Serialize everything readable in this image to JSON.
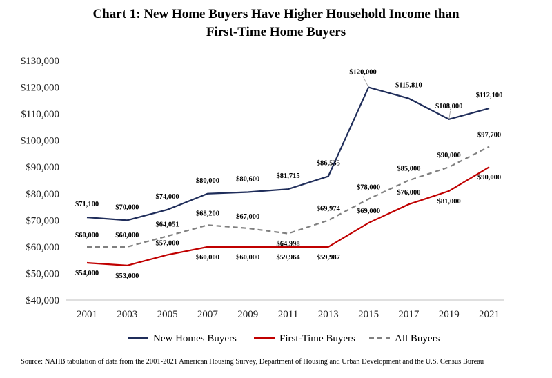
{
  "chart_data": {
    "type": "line",
    "title_line1": "Chart 1: New Home Buyers Have Higher Household Income than",
    "title_line2": "First-Time Home Buyers",
    "categories": [
      "2001",
      "2003",
      "2005",
      "2007",
      "2009",
      "2011",
      "2013",
      "2015",
      "2017",
      "2019",
      "2021"
    ],
    "ylim": [
      40000,
      130000
    ],
    "yticks": [
      "$40,000",
      "$50,000",
      "$60,000",
      "$70,000",
      "$80,000",
      "$90,000",
      "$100,000",
      "$110,000",
      "$120,000",
      "$130,000"
    ],
    "series": [
      {
        "name": "New Homes Buyers",
        "color": "#1f2d5a",
        "dash": "solid",
        "values": [
          71100,
          70000,
          74000,
          80000,
          80600,
          81715,
          86535,
          120000,
          115810,
          108000,
          112100
        ],
        "labels": [
          "$71,100",
          "$70,000",
          "$74,000",
          "$80,000",
          "$80,600",
          "$81,715",
          "$86,535",
          "$120,000",
          "$115,810",
          "$108,000",
          "$112,100"
        ]
      },
      {
        "name": "First-Time Buyers",
        "color": "#c00000",
        "dash": "solid",
        "values": [
          54000,
          53000,
          57000,
          60000,
          60000,
          59964,
          59987,
          69000,
          76000,
          81000,
          90000
        ],
        "labels": [
          "$54,000",
          "$53,000",
          "$57,000",
          "$60,000",
          "$60,000",
          "$59,964",
          "$59,987",
          "$69,000",
          "$76,000",
          "$81,000",
          "$90,000"
        ]
      },
      {
        "name": "All Buyers",
        "color": "#808080",
        "dash": "dashed",
        "values": [
          60000,
          60000,
          64051,
          68200,
          67000,
          64998,
          69974,
          78000,
          85000,
          90000,
          97700
        ],
        "labels": [
          "$60,000",
          "$60,000",
          "$64,051",
          "$68,200",
          "$67,000",
          "$64,998",
          "$69,974",
          "$78,000",
          "$85,000",
          "$90,000",
          "$97,700"
        ]
      }
    ],
    "legend_position": "bottom",
    "grid": false
  },
  "source": "Source: NAHB tabulation of data from the 2001-2021 American Housing Survey, Department of Housing and Urban Development and the U.S. Census Bureau"
}
